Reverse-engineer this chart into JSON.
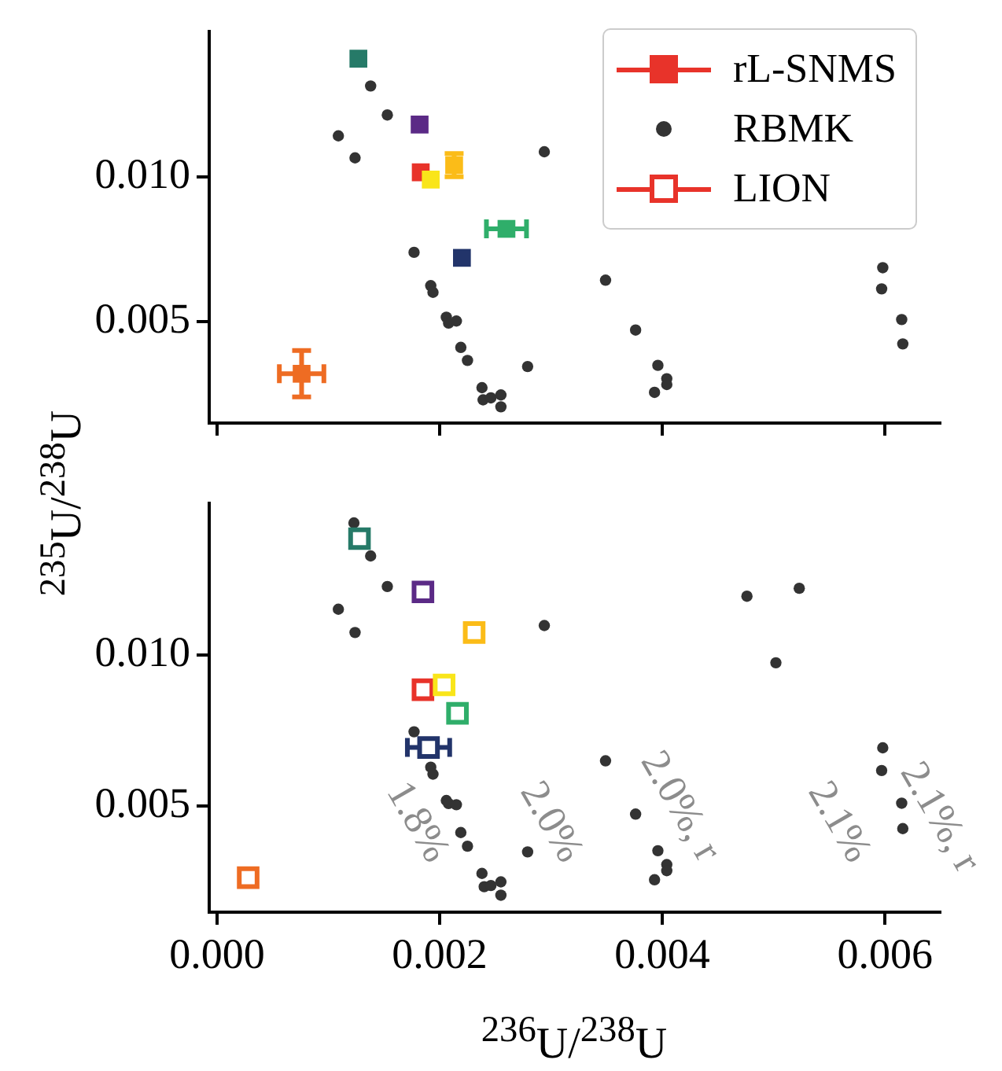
{
  "chart_data": [
    {
      "type": "scatter",
      "ylabel": "$^{235}$U/$^{238}$U",
      "xlim": [
        -7e-05,
        0.0065
      ],
      "ylim": [
        0.0015,
        0.015
      ],
      "xticks": [
        0,
        0.002,
        0.004,
        0.006
      ],
      "yticks": [
        0.005,
        {
          "value": 0.01,
          "label": "0.010"
        }
      ],
      "tick_labels": "y",
      "legend": "top right",
      "series": [
        {
          "name": "rL-SNMS",
          "marker": "square",
          "color": "#e8332a",
          "colors": [
            "#267a68",
            "#5b2a86",
            "#e8332a",
            "#fbbc18",
            "#f9e51a",
            "#2fae6a",
            "#22346a",
            "#ee6c23"
          ],
          "x": [
            0.00127,
            0.00182,
            0.00183,
            0.00213,
            0.00192,
            0.0026,
            0.0022,
            0.00076
          ],
          "values": [
            0.01407,
            0.0118,
            0.01015,
            0.0104,
            0.0099,
            0.0082,
            0.0072,
            0.0032
          ],
          "errors": [
            null,
            null,
            null,
            0.0004,
            null,
            null,
            null,
            0.0008
          ],
          "xerrors": [
            null,
            null,
            null,
            null,
            null,
            0.00018,
            null,
            0.0002
          ]
        },
        {
          "name": "RBMK",
          "marker": "circle",
          "color": "#333333",
          "x": [
            0.00138,
            0.00153,
            0.00109,
            0.00124,
            0.00294,
            0.00177,
            0.00192,
            0.00194,
            0.00206,
            0.00208,
            0.00215,
            0.00219,
            0.00225,
            0.00238,
            0.00239,
            0.00246,
            0.00255,
            0.00255,
            0.00279,
            0.00349,
            0.00376,
            0.00396,
            0.00404,
            0.00404,
            0.00393,
            0.00598,
            0.00597,
            0.00615,
            0.00616
          ],
          "values": [
            0.01313,
            0.01213,
            0.01141,
            0.01065,
            0.01086,
            0.00739,
            0.00624,
            0.00601,
            0.00515,
            0.00495,
            0.00502,
            0.00411,
            0.00366,
            0.00272,
            0.0023,
            0.00237,
            0.00247,
            0.00206,
            0.00345,
            0.00643,
            0.00471,
            0.00349,
            0.00303,
            0.00283,
            0.00256,
            0.00686,
            0.00613,
            0.00507,
            0.00423
          ]
        }
      ]
    },
    {
      "type": "scatter",
      "xlabel": "$^{236}$U/$^{238}$U",
      "xlim": [
        -7e-05,
        0.0065
      ],
      "ylim": [
        0.0015,
        0.015
      ],
      "xticks": [
        {
          "value": 0,
          "label": "0.000"
        },
        0.002,
        0.004,
        0.006
      ],
      "yticks": [
        0.005,
        {
          "value": 0.01,
          "label": "0.010"
        }
      ],
      "series": [
        {
          "name": "LION",
          "marker": "square",
          "color": "#e8332a",
          "colors": [
            "#267a68",
            "#5b2a86",
            "#fbbc18",
            "#e8332a",
            "#f9e51a",
            "#2fae6a",
            "#22346a",
            "#ee6c23"
          ],
          "x": [
            0.00128,
            0.00185,
            0.00231,
            0.00185,
            0.00204,
            0.00216,
            0.0019,
            0.00028
          ],
          "values": [
            0.01384,
            0.01208,
            0.01074,
            0.00885,
            0.00901,
            0.00807,
            0.00694,
            0.00264
          ],
          "xerrors": [
            null,
            null,
            null,
            null,
            null,
            null,
            0.00019,
            null
          ]
        },
        {
          "marker": "circle",
          "color": "#333333",
          "x": [
            0.00123,
            0.00138,
            0.00153,
            0.00109,
            0.00124,
            0.00294,
            0.00476,
            0.00523,
            0.00502,
            0.00177,
            0.00192,
            0.00194,
            0.00206,
            0.00208,
            0.00215,
            0.00219,
            0.00225,
            0.00238,
            0.0024,
            0.00246,
            0.00255,
            0.00255,
            0.00279,
            0.00349,
            0.00376,
            0.00396,
            0.00404,
            0.00404,
            0.00393,
            0.00598,
            0.00597,
            0.00615,
            0.00616
          ],
          "values": [
            0.01436,
            0.01327,
            0.01226,
            0.01151,
            0.01074,
            0.01097,
            0.01194,
            0.0122,
            0.00974,
            0.00746,
            0.00629,
            0.00606,
            0.00519,
            0.00509,
            0.00505,
            0.00413,
            0.00368,
            0.00278,
            0.00234,
            0.00238,
            0.0025,
            0.00206,
            0.00349,
            0.0065,
            0.00474,
            0.00353,
            0.00307,
            0.00287,
            0.00257,
            0.00693,
            0.00618,
            0.0051,
            0.00426
          ]
        }
      ],
      "annotations": [
        "1.8%",
        "2.0%",
        "2.0%, r",
        "2.1%",
        "2.1%, r"
      ]
    }
  ]
}
